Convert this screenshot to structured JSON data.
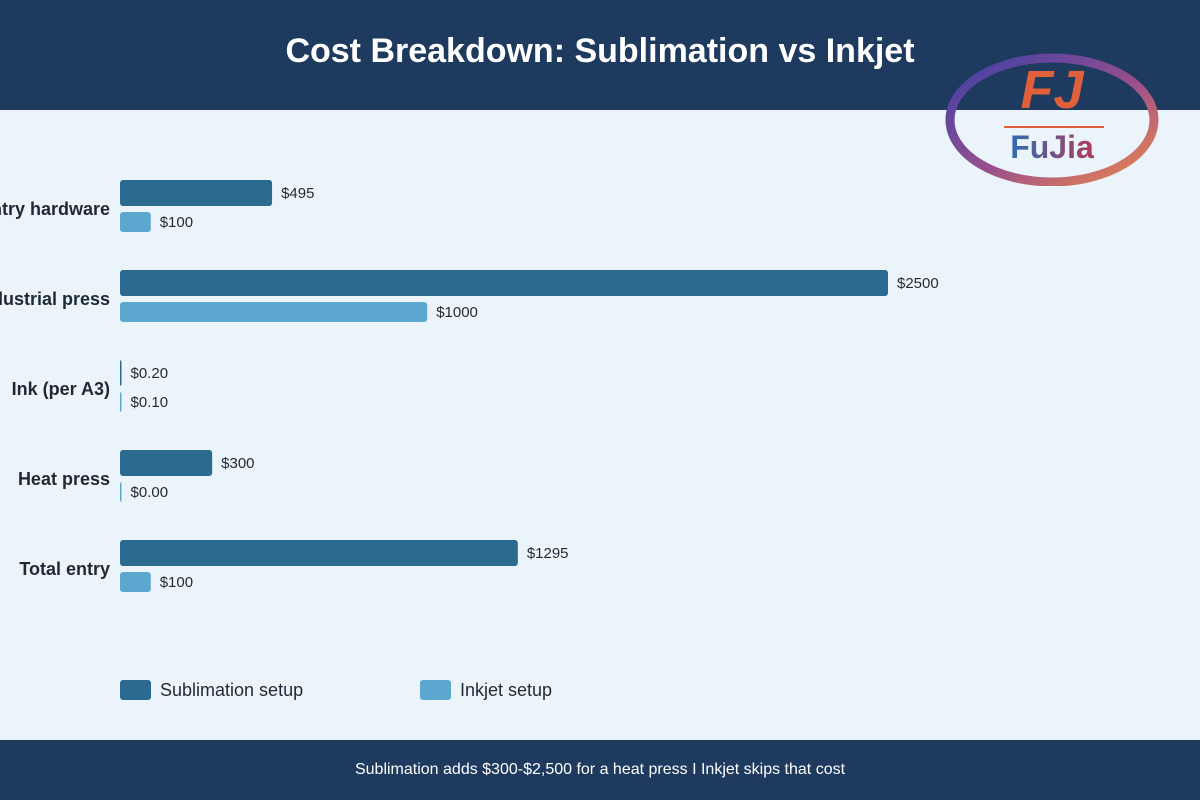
{
  "colors": {
    "header_bg": "#1e3a5f",
    "background": "#eaf4fa",
    "sublimation": "#2d6a8f",
    "inkjet": "#5ba7cf"
  },
  "logo": {
    "text": "FuJia",
    "mark": "FJ",
    "icon": "fujia-logo-icon"
  },
  "chart_data": {
    "type": "bar",
    "orientation": "horizontal",
    "title": "Cost Breakdown: Sublimation vs Inkjet",
    "categories": [
      "Entry hardware",
      "Industrial press",
      "Ink (per A3)",
      "Heat press",
      "Total entry"
    ],
    "series": [
      {
        "name": "Sublimation setup",
        "values": [
          495,
          2500,
          0.2,
          300,
          1295
        ],
        "labels": [
          "$495",
          "$2500",
          "$0.20",
          "$300",
          "$1295"
        ],
        "color": "#2d6a8f"
      },
      {
        "name": "Inkjet setup",
        "values": [
          100,
          1000,
          0.1,
          0,
          100
        ],
        "labels": [
          "$100",
          "$1000",
          "$0.10",
          "$0.00",
          "$100"
        ],
        "color": "#5ba7cf"
      }
    ],
    "xlim": [
      0,
      3000
    ],
    "grid": false,
    "legend_position": "bottom"
  },
  "footer": {
    "text": "Sublimation adds $300-$2,500 for a heat press  I  Inkjet skips that cost"
  }
}
